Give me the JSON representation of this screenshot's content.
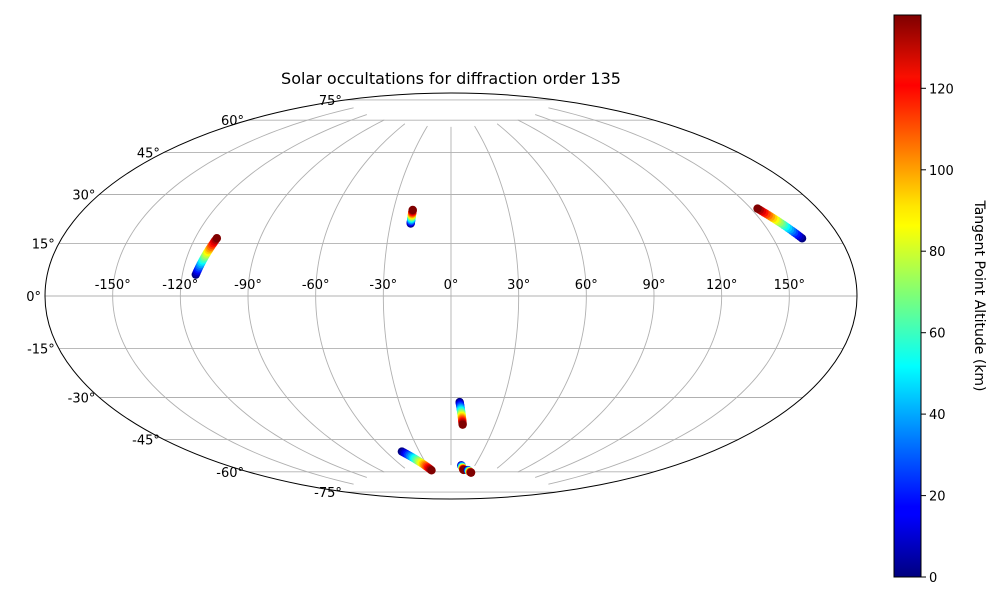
{
  "chart_data": {
    "type": "scatter",
    "projection": "aitoff",
    "title": "Solar occultations for diffraction order 135",
    "grid": true,
    "longitude_ticks": [
      "-150°",
      "-120°",
      "-90°",
      "-60°",
      "-30°",
      "0°",
      "30°",
      "60°",
      "90°",
      "120°",
      "150°"
    ],
    "latitude_ticks": [
      "75°",
      "60°",
      "45°",
      "30°",
      "15°",
      "0°",
      "-15°",
      "-30°",
      "-45°",
      "-60°",
      "-75°"
    ],
    "colorbar": {
      "label": "Tangent Point Altitude (km)",
      "colormap": "jet",
      "range": [
        0,
        138
      ],
      "ticks": [
        "0",
        "20",
        "40",
        "60",
        "80",
        "100",
        "120"
      ]
    },
    "series": [
      {
        "lon_range": [
          -110,
          -114
        ],
        "lat_range": [
          22,
          8
        ],
        "alt_range": [
          138,
          0
        ]
      },
      {
        "lon_range": [
          -20,
          -20
        ],
        "lat_range": [
          38,
          32
        ],
        "alt_range": [
          138,
          0
        ]
      },
      {
        "lon_range": [
          153,
          163
        ],
        "lat_range": [
          29,
          18
        ],
        "alt_range": [
          138,
          0
        ]
      },
      {
        "lon_range": [
          5,
          8
        ],
        "lat_range": [
          -47,
          -57
        ],
        "alt_range": [
          0,
          138
        ]
      },
      {
        "lon_range": [
          -46,
          -28
        ],
        "lat_range": [
          -68,
          -77
        ],
        "alt_range": [
          0,
          138
        ]
      },
      {
        "lon_range": [
          13,
          18
        ],
        "lat_range": [
          -75,
          -77
        ],
        "alt_range": [
          0,
          138
        ]
      },
      {
        "lon_range": [
          24,
          31
        ],
        "lat_range": [
          -77,
          -78
        ],
        "alt_range": [
          0,
          138
        ]
      }
    ]
  }
}
